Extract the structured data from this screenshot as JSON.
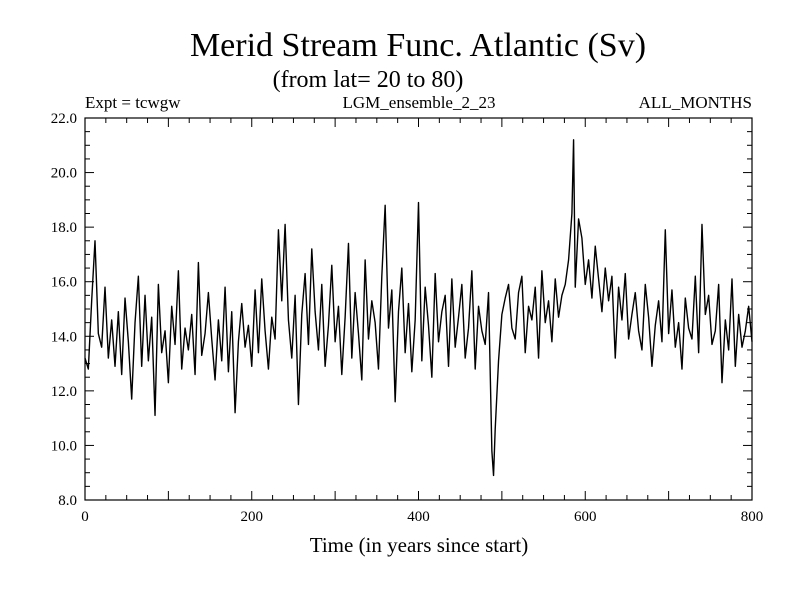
{
  "chart_data": {
    "type": "line",
    "title": "Merid Stream Func. Atlantic (Sv)",
    "subtitle": "(from lat= 20 to 80)",
    "header_left": "Expt = tcwgw",
    "header_center": "LGM_ensemble_2_23",
    "header_right": "ALL_MONTHS",
    "xlabel": "Time (in years since start)",
    "ylabel": "",
    "xlim": [
      0,
      800
    ],
    "ylim": [
      8.0,
      22.0
    ],
    "xticks": [
      0,
      200,
      400,
      600,
      800
    ],
    "xtick_labels": [
      "0",
      "200",
      "400",
      "600",
      "800"
    ],
    "yticks": [
      8.0,
      10.0,
      12.0,
      14.0,
      16.0,
      18.0,
      20.0,
      22.0
    ],
    "ytick_labels": [
      "8.0",
      "10.0",
      "12.0",
      "14.0",
      "16.0",
      "18.0",
      "20.0",
      "22.0"
    ],
    "series": [
      {
        "x": [
          0,
          4,
          8,
          12,
          16,
          20,
          24,
          28,
          32,
          36,
          40,
          44,
          48,
          52,
          56,
          60,
          64,
          68,
          72,
          76,
          80,
          84,
          88,
          92,
          96,
          100,
          104,
          108,
          112,
          116,
          120,
          124,
          128,
          132,
          136,
          140,
          144,
          148,
          152,
          156,
          160,
          164,
          168,
          172,
          176,
          180,
          184,
          188,
          192,
          196,
          200,
          204,
          208,
          212,
          216,
          220,
          224,
          228,
          232,
          236,
          240,
          244,
          248,
          252,
          256,
          260,
          264,
          268,
          272,
          276,
          280,
          284,
          288,
          292,
          296,
          300,
          304,
          308,
          312,
          316,
          320,
          324,
          328,
          332,
          336,
          340,
          344,
          348,
          352,
          356,
          360,
          364,
          368,
          372,
          376,
          380,
          384,
          388,
          392,
          396,
          400,
          404,
          408,
          412,
          416,
          420,
          424,
          428,
          432,
          436,
          440,
          444,
          448,
          452,
          456,
          460,
          464,
          468,
          472,
          476,
          480,
          484,
          488,
          490,
          492,
          496,
          500,
          504,
          508,
          512,
          516,
          520,
          524,
          528,
          532,
          536,
          540,
          544,
          548,
          552,
          556,
          560,
          564,
          568,
          572,
          576,
          580,
          584,
          586,
          588,
          592,
          596,
          600,
          604,
          608,
          612,
          616,
          620,
          624,
          628,
          632,
          636,
          640,
          644,
          648,
          652,
          656,
          660,
          664,
          668,
          672,
          676,
          680,
          684,
          688,
          692,
          696,
          700,
          704,
          708,
          712,
          716,
          720,
          724,
          728,
          732,
          736,
          740,
          744,
          748,
          752,
          756,
          760,
          764,
          768,
          772,
          776,
          780,
          784,
          788,
          792,
          796,
          800
        ],
        "values": [
          13.2,
          12.8,
          15.3,
          17.5,
          14.1,
          13.6,
          15.8,
          13.2,
          14.6,
          12.9,
          14.9,
          12.6,
          15.4,
          13.8,
          11.7,
          14.5,
          16.2,
          12.9,
          15.5,
          13.1,
          14.7,
          11.1,
          15.9,
          13.4,
          14.2,
          12.3,
          15.1,
          13.7,
          16.4,
          12.8,
          14.3,
          13.5,
          14.8,
          12.6,
          16.7,
          13.3,
          14.1,
          15.6,
          13.9,
          12.4,
          14.6,
          13.1,
          15.8,
          12.7,
          14.9,
          11.2,
          13.8,
          15.2,
          13.6,
          14.4,
          12.9,
          15.7,
          13.4,
          16.1,
          14.2,
          12.8,
          14.7,
          13.9,
          17.9,
          15.3,
          18.1,
          14.6,
          13.2,
          15.5,
          11.5,
          14.8,
          16.3,
          13.7,
          17.2,
          14.9,
          13.5,
          15.9,
          12.9,
          14.4,
          16.6,
          13.8,
          15.1,
          12.6,
          14.7,
          17.4,
          13.2,
          15.6,
          14.1,
          12.4,
          16.8,
          13.9,
          15.3,
          14.5,
          12.8,
          16.2,
          18.8,
          14.3,
          15.7,
          11.6,
          14.9,
          16.5,
          13.4,
          15.2,
          12.7,
          14.6,
          18.9,
          13.1,
          15.8,
          14.4,
          12.5,
          16.3,
          13.8,
          14.9,
          15.5,
          12.9,
          16.1,
          13.6,
          14.7,
          15.9,
          13.2,
          14.3,
          16.4,
          12.8,
          15.1,
          14.2,
          13.7,
          15.6,
          9.8,
          8.9,
          10.6,
          13.1,
          14.8,
          15.4,
          15.9,
          14.3,
          13.9,
          15.6,
          16.2,
          13.4,
          15.1,
          14.6,
          15.8,
          13.2,
          16.4,
          14.5,
          15.3,
          13.8,
          16.1,
          14.7,
          15.5,
          15.9,
          16.8,
          18.5,
          21.2,
          15.8,
          18.3,
          17.6,
          15.9,
          16.8,
          15.4,
          17.3,
          16.1,
          14.9,
          16.5,
          15.3,
          16.2,
          13.2,
          15.8,
          14.6,
          16.3,
          13.9,
          14.8,
          15.6,
          14.2,
          13.5,
          15.9,
          14.7,
          12.9,
          14.4,
          15.3,
          13.8,
          17.9,
          14.1,
          15.7,
          13.6,
          14.5,
          12.8,
          15.4,
          14.3,
          13.9,
          16.2,
          13.4,
          18.1,
          14.8,
          15.5,
          13.7,
          14.2,
          15.9,
          12.3,
          14.6,
          13.5,
          16.1,
          12.9,
          14.8,
          13.6,
          14.2,
          15.1,
          13.8
        ]
      }
    ],
    "line_color": "#000000",
    "grid": false,
    "legend": "none"
  }
}
